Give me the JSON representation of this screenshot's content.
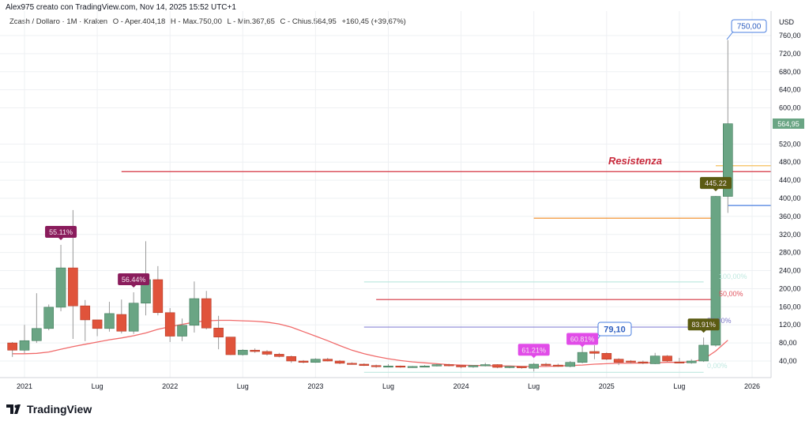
{
  "watermark": "Alex975 creato con TradingView.com, Nov 14, 2025 15:52 UTC+1",
  "legend": {
    "symbol": "Zcash / Dollaro · 1M · Kraken",
    "open": "O - Aper.404,18",
    "high": "H - Max.750,00",
    "low": "L - Min.367,65",
    "close": "C - Chius.564,95",
    "change": "+160,45 (+39,67%)"
  },
  "currency": "USD",
  "colors": {
    "up": "#6aa584",
    "down": "#e0533b",
    "ma": "#f06a6a",
    "grid": "#eef0f3"
  },
  "price_ticks": [
    "40,00",
    "80,00",
    "120,00",
    "160,00",
    "200,00",
    "240,00",
    "280,00",
    "320,00",
    "360,00",
    "400,00",
    "440,00",
    "480,00",
    "520,00",
    "600,00",
    "640,00",
    "680,00",
    "720,00",
    "760,00"
  ],
  "time_ticks": [
    "2021",
    "Lug",
    "2022",
    "Lug",
    "2023",
    "Lug",
    "2024",
    "Lug",
    "2025",
    "Lug",
    "2026"
  ],
  "last_price_label": "564,95",
  "chart_data": {
    "type": "candlestick",
    "interval": "1M",
    "ylim": [
      0,
      790
    ],
    "grid": true,
    "candles": [
      [
        "2020-12",
        80,
        82,
        49,
        64
      ],
      [
        "2021-01",
        64,
        120,
        57,
        85
      ],
      [
        "2021-02",
        85,
        190,
        80,
        112
      ],
      [
        "2021-03",
        112,
        165,
        108,
        159
      ],
      [
        "2021-04",
        159,
        297,
        150,
        246
      ],
      [
        "2021-05",
        246,
        374,
        89,
        162
      ],
      [
        "2021-06",
        162,
        175,
        84,
        131
      ],
      [
        "2021-07",
        131,
        131,
        95,
        112
      ],
      [
        "2021-08",
        112,
        171,
        105,
        145
      ],
      [
        "2021-09",
        143,
        176,
        101,
        106
      ],
      [
        "2021-10",
        106,
        192,
        100,
        168
      ],
      [
        "2021-11",
        168,
        305,
        141,
        220
      ],
      [
        "2021-12",
        220,
        250,
        141,
        147
      ],
      [
        "2022-01",
        147,
        157,
        82,
        95
      ],
      [
        "2022-02",
        95,
        134,
        84,
        119
      ],
      [
        "2022-03",
        119,
        216,
        103,
        178
      ],
      [
        "2022-04",
        178,
        195,
        110,
        113
      ],
      [
        "2022-05",
        113,
        140,
        66,
        93
      ],
      [
        "2022-06",
        93,
        91,
        53,
        54
      ],
      [
        "2022-07",
        54,
        66,
        52,
        64
      ],
      [
        "2022-08",
        64,
        68,
        58,
        61
      ],
      [
        "2022-09",
        61,
        64,
        52,
        55
      ],
      [
        "2022-10",
        55,
        58,
        48,
        50
      ],
      [
        "2022-11",
        50,
        52,
        36,
        40
      ],
      [
        "2022-12",
        40,
        42,
        35,
        37
      ],
      [
        "2023-01",
        37,
        46,
        36,
        44
      ],
      [
        "2023-02",
        44,
        47,
        39,
        40
      ],
      [
        "2023-03",
        40,
        42,
        33,
        35
      ],
      [
        "2023-04",
        35,
        37,
        32,
        33
      ],
      [
        "2023-05",
        33,
        35,
        29,
        30
      ],
      [
        "2023-06",
        30,
        32,
        25,
        29
      ],
      [
        "2023-07",
        29,
        33,
        27,
        29
      ],
      [
        "2023-08",
        29,
        30,
        25,
        27
      ],
      [
        "2023-09",
        27,
        29,
        25,
        28
      ],
      [
        "2023-10",
        28,
        31,
        26,
        29
      ],
      [
        "2023-11",
        29,
        34,
        28,
        32
      ],
      [
        "2023-12",
        32,
        34,
        28,
        30
      ],
      [
        "2024-01",
        30,
        31,
        24,
        27
      ],
      [
        "2024-02",
        27,
        31,
        25,
        30
      ],
      [
        "2024-03",
        30,
        36,
        28,
        32
      ],
      [
        "2024-04",
        32,
        33,
        24,
        26
      ],
      [
        "2024-05",
        26,
        29,
        24,
        28
      ],
      [
        "2024-06",
        28,
        29,
        23,
        25
      ],
      [
        "2024-07",
        24,
        36,
        17,
        33
      ],
      [
        "2024-08",
        33,
        36,
        28,
        31
      ],
      [
        "2024-09",
        31,
        34,
        27,
        28
      ],
      [
        "2024-10",
        28,
        40,
        26,
        37
      ],
      [
        "2024-11",
        37,
        73,
        35,
        59
      ],
      [
        "2024-12",
        61,
        75,
        44,
        57
      ],
      [
        "2025-01",
        57,
        59,
        42,
        44
      ],
      [
        "2025-02",
        44,
        46,
        31,
        37
      ],
      [
        "2025-03",
        40,
        42,
        34,
        38
      ],
      [
        "2025-04",
        38,
        41,
        33,
        35
      ],
      [
        "2025-05",
        34,
        58,
        33,
        51
      ],
      [
        "2025-06",
        51,
        53,
        38,
        40
      ],
      [
        "2025-07",
        38,
        47,
        35,
        36
      ],
      [
        "2025-08",
        36,
        44,
        34,
        40
      ],
      [
        "2025-09",
        40,
        92,
        38,
        75
      ],
      [
        "2025-10",
        75,
        405,
        72,
        404.18
      ],
      [
        "2025-11",
        404.18,
        750,
        367.65,
        564.95
      ]
    ],
    "ma": [
      56,
      56,
      57,
      60,
      66,
      72,
      77,
      82,
      87,
      91,
      96,
      102,
      110,
      116,
      121,
      126,
      129,
      130,
      130,
      129,
      128,
      126,
      122,
      115,
      105,
      95,
      85,
      74,
      64,
      56,
      50,
      45,
      41,
      38,
      36,
      34,
      32,
      31,
      30,
      30,
      29,
      29,
      28,
      28,
      28,
      29,
      30,
      31,
      33,
      34,
      35,
      35,
      36,
      36,
      37,
      37,
      38,
      44,
      62,
      86
    ],
    "hlines": [
      {
        "name": "resistenza-line",
        "price": 459,
        "from": "2021-09",
        "to": "2026-04",
        "color": "#d4333f"
      },
      {
        "name": "orange-level-line",
        "price": 356,
        "from": "2024-07",
        "to": "2025-10",
        "color": "#f0871e"
      },
      {
        "name": "orange-short-line",
        "price": 472,
        "from": "2025-10",
        "to": "2026-04",
        "color": "#f5b94a"
      },
      {
        "name": "blue-level-line",
        "price": 384,
        "from": "2025-11",
        "to": "2026-04",
        "color": "#4a7fe0"
      },
      {
        "name": "fib-top-line",
        "price": 215,
        "from": "2023-05",
        "to": "2025-09",
        "color": "#bfe8e0"
      },
      {
        "name": "fib-50-line",
        "price": 176,
        "from": "2023-06",
        "to": "2025-10",
        "color": "#d4333f"
      },
      {
        "name": "fib-purple-line",
        "price": 115,
        "from": "2023-05",
        "to": "2025-10",
        "color": "#8a86d6"
      },
      {
        "name": "fib-0-line",
        "price": 15,
        "from": "2023-05",
        "to": "2025-09",
        "color": "#bfe8e0"
      }
    ],
    "annotations": {
      "resistenza": "Resistenza",
      "fib_top": "100,00%",
      "fib_50": "50,00%",
      "fib_mid": "58,90%",
      "fib_0": "0,00%",
      "callout_high": "750,00",
      "callout_low": "79,10",
      "badges": [
        {
          "text": "55.11%",
          "at": "2021-04",
          "price": 297,
          "color": "#8a1c5c"
        },
        {
          "text": "56.44%",
          "at": "2021-10",
          "price": 192,
          "color": "#8a1c5c"
        },
        {
          "text": "61.21%",
          "at": "2024-07",
          "price": 36,
          "color": "#e14ce8"
        },
        {
          "text": "60.81%",
          "at": "2024-11",
          "price": 60,
          "color": "#e14ce8"
        },
        {
          "text": "83.91%",
          "at": "2025-09",
          "price": 92,
          "color": "#5b5b12"
        },
        {
          "text": "445.22",
          "at": "2025-10",
          "price": 405,
          "color": "#5b5b12"
        }
      ]
    }
  }
}
